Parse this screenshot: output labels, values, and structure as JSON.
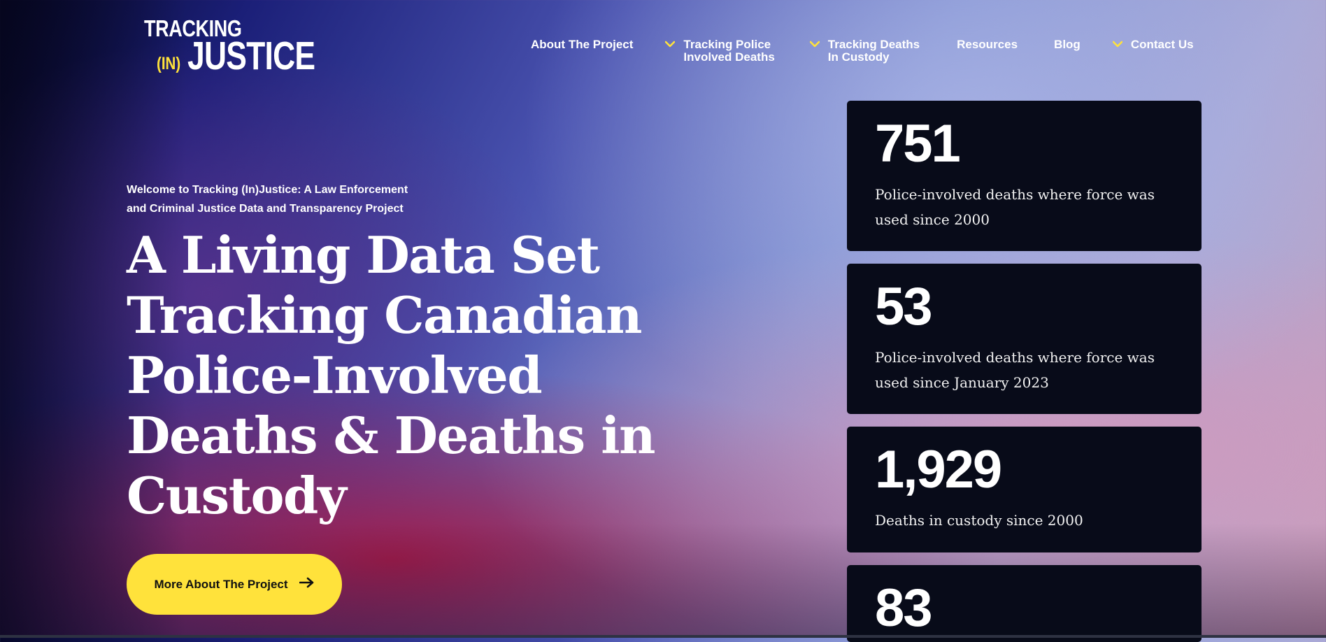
{
  "logo": {
    "line1": "TRACKING",
    "in": "(IN)",
    "line2": "JUSTICE"
  },
  "nav": [
    {
      "label": "About The Project",
      "dropdown": false
    },
    {
      "label": "Tracking Police\nInvolved Deaths",
      "dropdown": true
    },
    {
      "label": "Tracking Deaths\nIn Custody",
      "dropdown": true
    },
    {
      "label": "Resources",
      "dropdown": false
    },
    {
      "label": "Blog",
      "dropdown": false
    },
    {
      "label": "Contact Us",
      "dropdown": true
    }
  ],
  "hero": {
    "eyebrow": "Welcome to Tracking (In)Justice: A Law Enforcement and Criminal Justice Data and Transparency Project",
    "title": "A Living Data Set Tracking Canadian Police-Involved Deaths & Deaths in Custody",
    "cta_label": "More About The Project"
  },
  "stats": [
    {
      "value": "751",
      "label": "Police-involved deaths where force was used since 2000"
    },
    {
      "value": "53",
      "label": "Police-involved deaths where force was used since January 2023"
    },
    {
      "value": "1,929",
      "label": "Deaths in custody since 2000"
    },
    {
      "value": "83",
      "label": ""
    }
  ],
  "colors": {
    "accent": "#ffe23b",
    "card_bg": "#080b19",
    "text": "#ffffff"
  },
  "icons": {
    "dropdown": "chevron-down-icon",
    "cta": "arrow-right-icon"
  }
}
